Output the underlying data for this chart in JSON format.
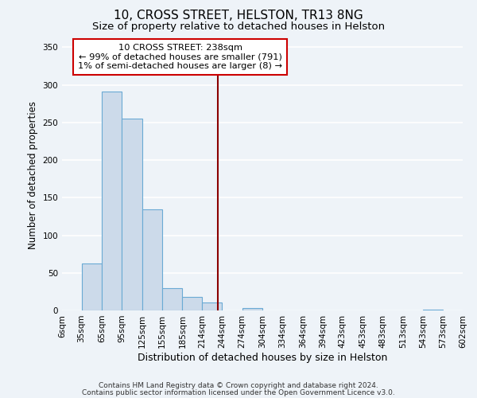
{
  "title": "10, CROSS STREET, HELSTON, TR13 8NG",
  "subtitle": "Size of property relative to detached houses in Helston",
  "xlabel": "Distribution of detached houses by size in Helston",
  "ylabel": "Number of detached properties",
  "bar_color": "#ccdaea",
  "bar_edge_color": "#6aaad4",
  "bin_edges": [
    6,
    35,
    65,
    95,
    125,
    155,
    185,
    214,
    244,
    274,
    304,
    334,
    364,
    394,
    423,
    453,
    483,
    513,
    543,
    573,
    602
  ],
  "bar_heights": [
    0,
    62,
    291,
    255,
    135,
    30,
    18,
    11,
    0,
    3,
    0,
    0,
    0,
    0,
    0,
    0,
    0,
    0,
    1,
    0
  ],
  "tick_labels": [
    "6sqm",
    "35sqm",
    "65sqm",
    "95sqm",
    "125sqm",
    "155sqm",
    "185sqm",
    "214sqm",
    "244sqm",
    "274sqm",
    "304sqm",
    "334sqm",
    "364sqm",
    "394sqm",
    "423sqm",
    "453sqm",
    "483sqm",
    "513sqm",
    "543sqm",
    "573sqm",
    "602sqm"
  ],
  "ylim": [
    0,
    360
  ],
  "yticks": [
    0,
    50,
    100,
    150,
    200,
    250,
    300,
    350
  ],
  "vline_x": 238,
  "vline_color": "#8b0000",
  "annotation_title": "10 CROSS STREET: 238sqm",
  "annotation_line1": "← 99% of detached houses are smaller (791)",
  "annotation_line2": "1% of semi-detached houses are larger (8) →",
  "annotation_box_color": "#ffffff",
  "annotation_box_edge": "#cc0000",
  "footer1": "Contains HM Land Registry data © Crown copyright and database right 2024.",
  "footer2": "Contains public sector information licensed under the Open Government Licence v3.0.",
  "background_color": "#eef3f8",
  "grid_color": "#ffffff",
  "title_fontsize": 11,
  "subtitle_fontsize": 9.5,
  "ylabel_fontsize": 8.5,
  "xlabel_fontsize": 9,
  "tick_fontsize": 7.5,
  "footer_fontsize": 6.5
}
